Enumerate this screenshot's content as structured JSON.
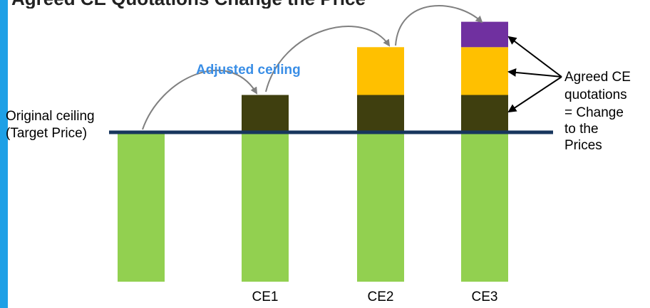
{
  "title": "Agreed CE Quotations Change the Price",
  "labels": {
    "original_ceiling_line1": "Original ceiling",
    "original_ceiling_line2": "(Target Price)",
    "adjusted_ceiling": "Adjusted ceiling",
    "agreed_line1": "Agreed CE",
    "agreed_line2": "quotations",
    "agreed_line3": "= Change",
    "agreed_line4": "to the",
    "agreed_line5": "Prices"
  },
  "columns": [
    {
      "id": "base",
      "label": "",
      "segments": [
        {
          "kind": "target",
          "value": 5
        }
      ]
    },
    {
      "id": "ce1",
      "label": "CE1",
      "segments": [
        {
          "kind": "target",
          "value": 5
        },
        {
          "kind": "ce1",
          "value": 1.25
        }
      ]
    },
    {
      "id": "ce2",
      "label": "CE2",
      "segments": [
        {
          "kind": "target",
          "value": 5
        },
        {
          "kind": "ce1",
          "value": 1.25
        },
        {
          "kind": "ce2",
          "value": 1.6
        }
      ]
    },
    {
      "id": "ce3",
      "label": "CE3",
      "segments": [
        {
          "kind": "target",
          "value": 5
        },
        {
          "kind": "ce1",
          "value": 1.25
        },
        {
          "kind": "ce2",
          "value": 1.6
        },
        {
          "kind": "ce3",
          "value": 0.85
        }
      ]
    }
  ],
  "colors": {
    "accent": "#1ea0e6",
    "target": "#92d050",
    "ce1": "#3f3f0f",
    "ce2": "#ffc000",
    "ce3": "#7030a0",
    "ceiling_line": "#17365d",
    "arrows": "#808080",
    "adjusted_text": "#3a8ee6",
    "text": "#000000"
  }
}
